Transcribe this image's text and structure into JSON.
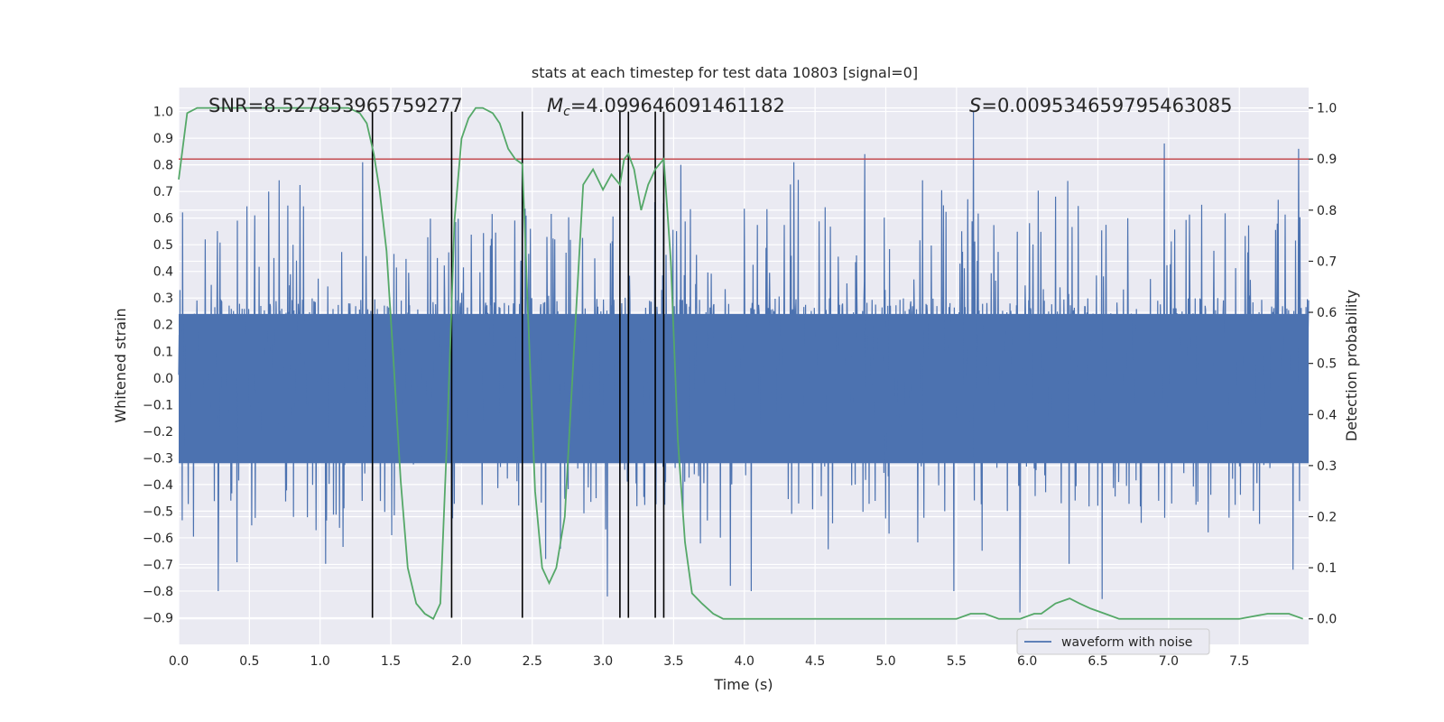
{
  "chart_data": {
    "type": "line",
    "title": "stats at each timestep for test data 10803 [signal=0]",
    "xlabel": "Time (s)",
    "ylabel": "Whitened strain",
    "y2label": "Detection probability",
    "xlim": [
      0.0,
      7.99
    ],
    "ylim": [
      -1.0,
      1.09
    ],
    "y2lim": [
      -0.05,
      1.04
    ],
    "x_ticks": [
      0.0,
      0.5,
      1.0,
      1.5,
      2.0,
      2.5,
      3.0,
      3.5,
      4.0,
      4.5,
      5.0,
      5.5,
      6.0,
      6.5,
      7.0,
      7.5
    ],
    "x_tick_labels": [
      "0.0",
      "0.5",
      "1.0",
      "1.5",
      "2.0",
      "2.5",
      "3.0",
      "3.5",
      "4.0",
      "4.5",
      "5.0",
      "5.5",
      "6.0",
      "6.5",
      "7.0",
      "7.5"
    ],
    "y_ticks": [
      -0.9,
      -0.8,
      -0.7,
      -0.6,
      -0.5,
      -0.4,
      -0.3,
      -0.2,
      -0.1,
      0.0,
      0.1,
      0.2,
      0.3,
      0.4,
      0.5,
      0.6,
      0.7,
      0.8,
      0.9,
      1.0
    ],
    "y_tick_labels": [
      "−0.9",
      "−0.8",
      "−0.7",
      "−0.6",
      "−0.5",
      "−0.4",
      "−0.3",
      "−0.2",
      "−0.1",
      "0.0",
      "0.1",
      "0.2",
      "0.3",
      "0.4",
      "0.5",
      "0.6",
      "0.7",
      "0.8",
      "0.9",
      "1.0"
    ],
    "y2_ticks": [
      0.0,
      0.1,
      0.2,
      0.3,
      0.4,
      0.5,
      0.6,
      0.7,
      0.8,
      0.9,
      1.0
    ],
    "y2_tick_labels": [
      "0.0",
      "0.1",
      "0.2",
      "0.3",
      "0.4",
      "0.5",
      "0.6",
      "0.7",
      "0.8",
      "0.9",
      "1.0"
    ],
    "annotations": {
      "snr": "SNR=8.527853965759277",
      "mc_symbol": "M",
      "mc_sub": "c",
      "mc_value": "=4.099646091461182",
      "s_symbol": "S",
      "s_value": "=0.009534659795463085"
    },
    "threshold_line": {
      "axis": "y2",
      "value": 0.9,
      "color": "#c44e52"
    },
    "vertical_lines_x": [
      1.37,
      1.93,
      2.43,
      3.12,
      3.18,
      3.37,
      3.43
    ],
    "vertical_lines_y_range": [
      -0.9,
      1.0
    ],
    "series": [
      {
        "name": "waveform with noise",
        "axis": "y",
        "color": "#4c72b0",
        "style": "dense noisy waveform",
        "typical_range": [
          -0.5,
          0.65
        ],
        "peaks": [
          {
            "x": 1.3,
            "y": 0.81
          },
          {
            "x": 2.43,
            "y": 0.93
          },
          {
            "x": 3.55,
            "y": 0.8
          },
          {
            "x": 4.35,
            "y": 0.81
          },
          {
            "x": 4.85,
            "y": 0.84
          },
          {
            "x": 5.62,
            "y": 1.0
          },
          {
            "x": 6.97,
            "y": 0.88
          },
          {
            "x": 7.92,
            "y": 0.86
          }
        ],
        "troughs": [
          {
            "x": 0.28,
            "y": -0.8
          },
          {
            "x": 1.93,
            "y": -0.7
          },
          {
            "x": 3.03,
            "y": -0.82
          },
          {
            "x": 3.9,
            "y": -0.78
          },
          {
            "x": 4.05,
            "y": -0.8
          },
          {
            "x": 5.48,
            "y": -0.8
          },
          {
            "x": 5.95,
            "y": -0.88
          },
          {
            "x": 6.53,
            "y": -0.83
          },
          {
            "x": 7.88,
            "y": -0.72
          }
        ]
      },
      {
        "name": "",
        "axis": "y2",
        "color": "#55a868",
        "x": [
          0.0,
          0.06,
          0.13,
          0.2,
          0.3,
          0.45,
          0.6,
          0.8,
          1.0,
          1.1,
          1.2,
          1.28,
          1.33,
          1.38,
          1.42,
          1.47,
          1.52,
          1.57,
          1.62,
          1.68,
          1.74,
          1.8,
          1.85,
          1.9,
          1.95,
          2.0,
          2.05,
          2.1,
          2.15,
          2.22,
          2.27,
          2.33,
          2.38,
          2.43,
          2.47,
          2.52,
          2.57,
          2.62,
          2.67,
          2.73,
          2.8,
          2.86,
          2.93,
          3.0,
          3.06,
          3.12,
          3.15,
          3.18,
          3.22,
          3.27,
          3.32,
          3.37,
          3.43,
          3.48,
          3.53,
          3.58,
          3.63,
          3.7,
          3.78,
          3.85,
          3.92,
          4.05,
          4.25,
          4.5,
          4.8,
          5.0,
          5.3,
          5.5,
          5.6,
          5.7,
          5.8,
          5.9,
          5.95,
          6.05,
          6.1,
          6.2,
          6.3,
          6.37,
          6.45,
          6.55,
          6.65,
          6.8,
          7.0,
          7.3,
          7.5,
          7.7,
          7.85,
          7.95
        ],
        "y": [
          0.86,
          0.99,
          1.0,
          1.0,
          1.0,
          1.0,
          1.0,
          1.0,
          1.0,
          1.0,
          1.0,
          0.99,
          0.97,
          0.91,
          0.84,
          0.72,
          0.5,
          0.27,
          0.1,
          0.03,
          0.01,
          0.0,
          0.03,
          0.37,
          0.78,
          0.94,
          0.98,
          1.0,
          1.0,
          0.99,
          0.97,
          0.92,
          0.9,
          0.89,
          0.6,
          0.25,
          0.1,
          0.07,
          0.1,
          0.2,
          0.55,
          0.85,
          0.88,
          0.84,
          0.87,
          0.85,
          0.9,
          0.91,
          0.88,
          0.8,
          0.85,
          0.88,
          0.9,
          0.7,
          0.35,
          0.15,
          0.05,
          0.03,
          0.01,
          0.0,
          0.0,
          0.0,
          0.0,
          0.0,
          0.0,
          0.0,
          0.0,
          0.0,
          0.01,
          0.01,
          0.0,
          0.0,
          0.0,
          0.01,
          0.01,
          0.03,
          0.04,
          0.03,
          0.02,
          0.01,
          0.0,
          0.0,
          0.0,
          0.0,
          0.0,
          0.01,
          0.01,
          0.0
        ]
      }
    ],
    "legend": {
      "placement": "lower-center",
      "entries": [
        "waveform with noise"
      ]
    },
    "grid": true
  }
}
